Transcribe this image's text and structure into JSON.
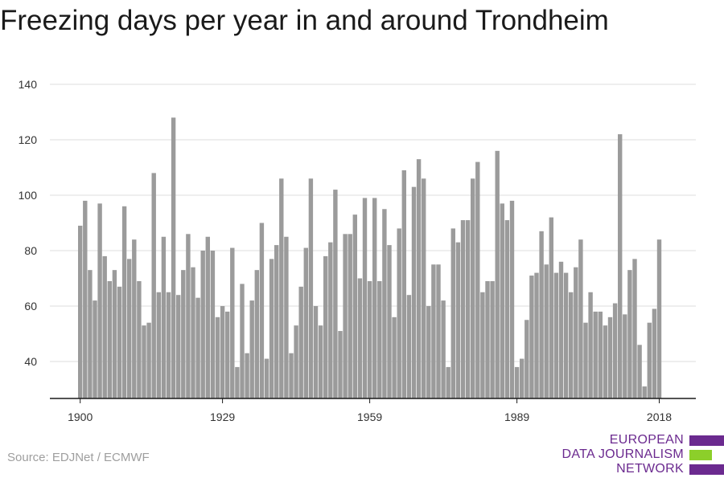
{
  "title": "Freezing days per year in and around Trondheim",
  "source": "Source: EDJNet / ECMWF",
  "logo": {
    "lines": [
      "EUROPEAN",
      "DATA JOURNALISM",
      "NETWORK"
    ],
    "colors": [
      "#6b2a8f",
      "#8ccf2a",
      "#6b2a8f"
    ]
  },
  "colors": {
    "bar": "#9b9b9b",
    "grid": "#dddddd",
    "axis": "#1a1a1a"
  },
  "chart_data": {
    "type": "bar",
    "title": "Freezing days per year in and around Trondheim",
    "xlabel": "",
    "ylabel": "",
    "ylim": [
      27,
      140
    ],
    "yticks": [
      40,
      60,
      80,
      100,
      120,
      140
    ],
    "xticks": [
      1900,
      1929,
      1959,
      1989,
      2018
    ],
    "grid": true,
    "x_start": 1900,
    "values": [
      89,
      98,
      73,
      62,
      97,
      78,
      69,
      73,
      67,
      96,
      77,
      84,
      69,
      53,
      54,
      108,
      65,
      85,
      65,
      128,
      64,
      73,
      86,
      74,
      63,
      80,
      85,
      80,
      56,
      60,
      58,
      81,
      38,
      68,
      43,
      62,
      73,
      90,
      41,
      77,
      82,
      106,
      85,
      43,
      53,
      67,
      81,
      106,
      60,
      53,
      78,
      83,
      102,
      51,
      86,
      86,
      93,
      70,
      99,
      69,
      99,
      69,
      95,
      82,
      56,
      88,
      109,
      64,
      103,
      113,
      106,
      60,
      75,
      75,
      62,
      38,
      88,
      83,
      91,
      91,
      106,
      112,
      65,
      69,
      69,
      116,
      97,
      91,
      98,
      38,
      41,
      55,
      71,
      72,
      87,
      75,
      92,
      72,
      76,
      72,
      65,
      74,
      84,
      54,
      65,
      58,
      58,
      53,
      56,
      61,
      122,
      57,
      73,
      77,
      46,
      31,
      54,
      59,
      84
    ]
  }
}
